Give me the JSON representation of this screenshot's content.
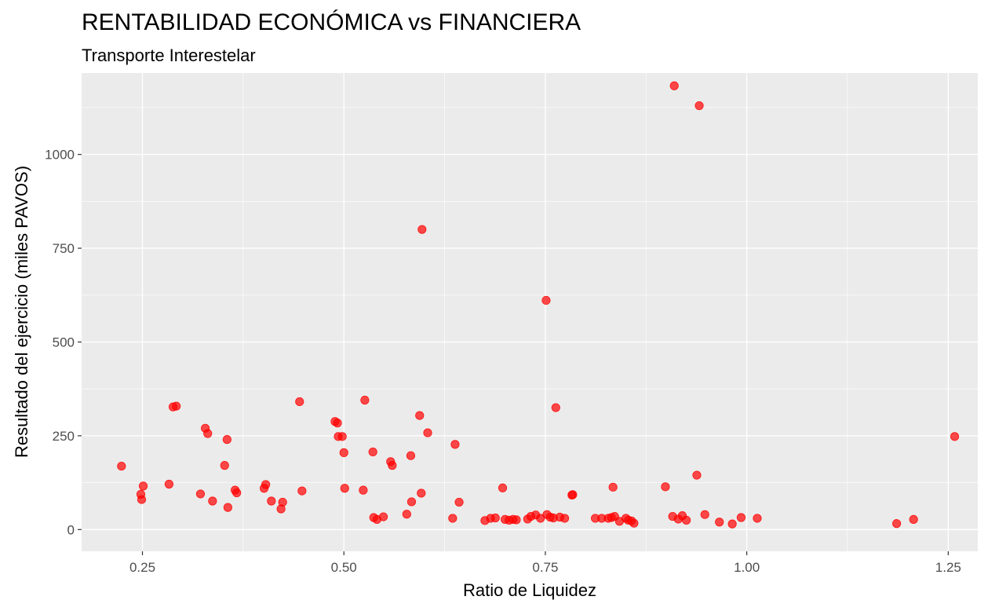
{
  "chart_data": {
    "type": "scatter",
    "title": "RENTABILIDAD ECONÓMICA vs FINANCIERA",
    "subtitle": "Transporte Interestelar",
    "xlabel": "Ratio de Liquidez",
    "ylabel": "Resultado del ejercicio (miles PAVOS)",
    "xlim": [
      0.1745,
      1.2867
    ],
    "ylim": [
      -58,
      1217
    ],
    "x_ticks": [
      0.25,
      0.5,
      0.75,
      1.0,
      1.25
    ],
    "x_tick_labels": [
      "0.25",
      "0.50",
      "0.75",
      "1.00",
      "1.25"
    ],
    "y_ticks": [
      0,
      250,
      500,
      750,
      1000
    ],
    "y_tick_labels": [
      "0",
      "250",
      "500",
      "750",
      "1000"
    ],
    "grid": true,
    "point_color": "#FF0000",
    "panel_color": "#EBEBEB",
    "points": [
      [
        0.224,
        169
      ],
      [
        0.248,
        94
      ],
      [
        0.249,
        80
      ],
      [
        0.251,
        116
      ],
      [
        0.283,
        121
      ],
      [
        0.288,
        327
      ],
      [
        0.292,
        329
      ],
      [
        0.322,
        95
      ],
      [
        0.328,
        270
      ],
      [
        0.331,
        256
      ],
      [
        0.337,
        76
      ],
      [
        0.352,
        171
      ],
      [
        0.355,
        240
      ],
      [
        0.356,
        59
      ],
      [
        0.365,
        105
      ],
      [
        0.367,
        98
      ],
      [
        0.401,
        110
      ],
      [
        0.403,
        120
      ],
      [
        0.41,
        76
      ],
      [
        0.422,
        55
      ],
      [
        0.424,
        73
      ],
      [
        0.445,
        341
      ],
      [
        0.448,
        103
      ],
      [
        0.489,
        288
      ],
      [
        0.492,
        284
      ],
      [
        0.493,
        248
      ],
      [
        0.498,
        248
      ],
      [
        0.5,
        205
      ],
      [
        0.501,
        110
      ],
      [
        0.524,
        105
      ],
      [
        0.526,
        345
      ],
      [
        0.536,
        207
      ],
      [
        0.537,
        32
      ],
      [
        0.541,
        27
      ],
      [
        0.549,
        34
      ],
      [
        0.558,
        181
      ],
      [
        0.56,
        171
      ],
      [
        0.578,
        41
      ],
      [
        0.583,
        197
      ],
      [
        0.584,
        74
      ],
      [
        0.594,
        304
      ],
      [
        0.596,
        97
      ],
      [
        0.597,
        800
      ],
      [
        0.604,
        258
      ],
      [
        0.635,
        30
      ],
      [
        0.638,
        227
      ],
      [
        0.643,
        73
      ],
      [
        0.675,
        24
      ],
      [
        0.682,
        30
      ],
      [
        0.688,
        31
      ],
      [
        0.697,
        111
      ],
      [
        0.7,
        27
      ],
      [
        0.705,
        25
      ],
      [
        0.71,
        27
      ],
      [
        0.714,
        26
      ],
      [
        0.728,
        28
      ],
      [
        0.732,
        35
      ],
      [
        0.738,
        39
      ],
      [
        0.744,
        30
      ],
      [
        0.751,
        611
      ],
      [
        0.752,
        40
      ],
      [
        0.756,
        33
      ],
      [
        0.76,
        31
      ],
      [
        0.763,
        325
      ],
      [
        0.768,
        33
      ],
      [
        0.774,
        30
      ],
      [
        0.783,
        92
      ],
      [
        0.784,
        93
      ],
      [
        0.812,
        30
      ],
      [
        0.82,
        30
      ],
      [
        0.828,
        30
      ],
      [
        0.832,
        32
      ],
      [
        0.834,
        113
      ],
      [
        0.836,
        35
      ],
      [
        0.842,
        22
      ],
      [
        0.85,
        30
      ],
      [
        0.853,
        25
      ],
      [
        0.857,
        23
      ],
      [
        0.86,
        17
      ],
      [
        0.899,
        114
      ],
      [
        0.908,
        35
      ],
      [
        0.91,
        1183
      ],
      [
        0.915,
        28
      ],
      [
        0.92,
        37
      ],
      [
        0.925,
        25
      ],
      [
        0.938,
        145
      ],
      [
        0.941,
        1130
      ],
      [
        0.948,
        40
      ],
      [
        0.966,
        20
      ],
      [
        0.982,
        15
      ],
      [
        0.993,
        32
      ],
      [
        1.013,
        30
      ],
      [
        1.186,
        16
      ],
      [
        1.207,
        27
      ],
      [
        1.258,
        248
      ]
    ]
  }
}
